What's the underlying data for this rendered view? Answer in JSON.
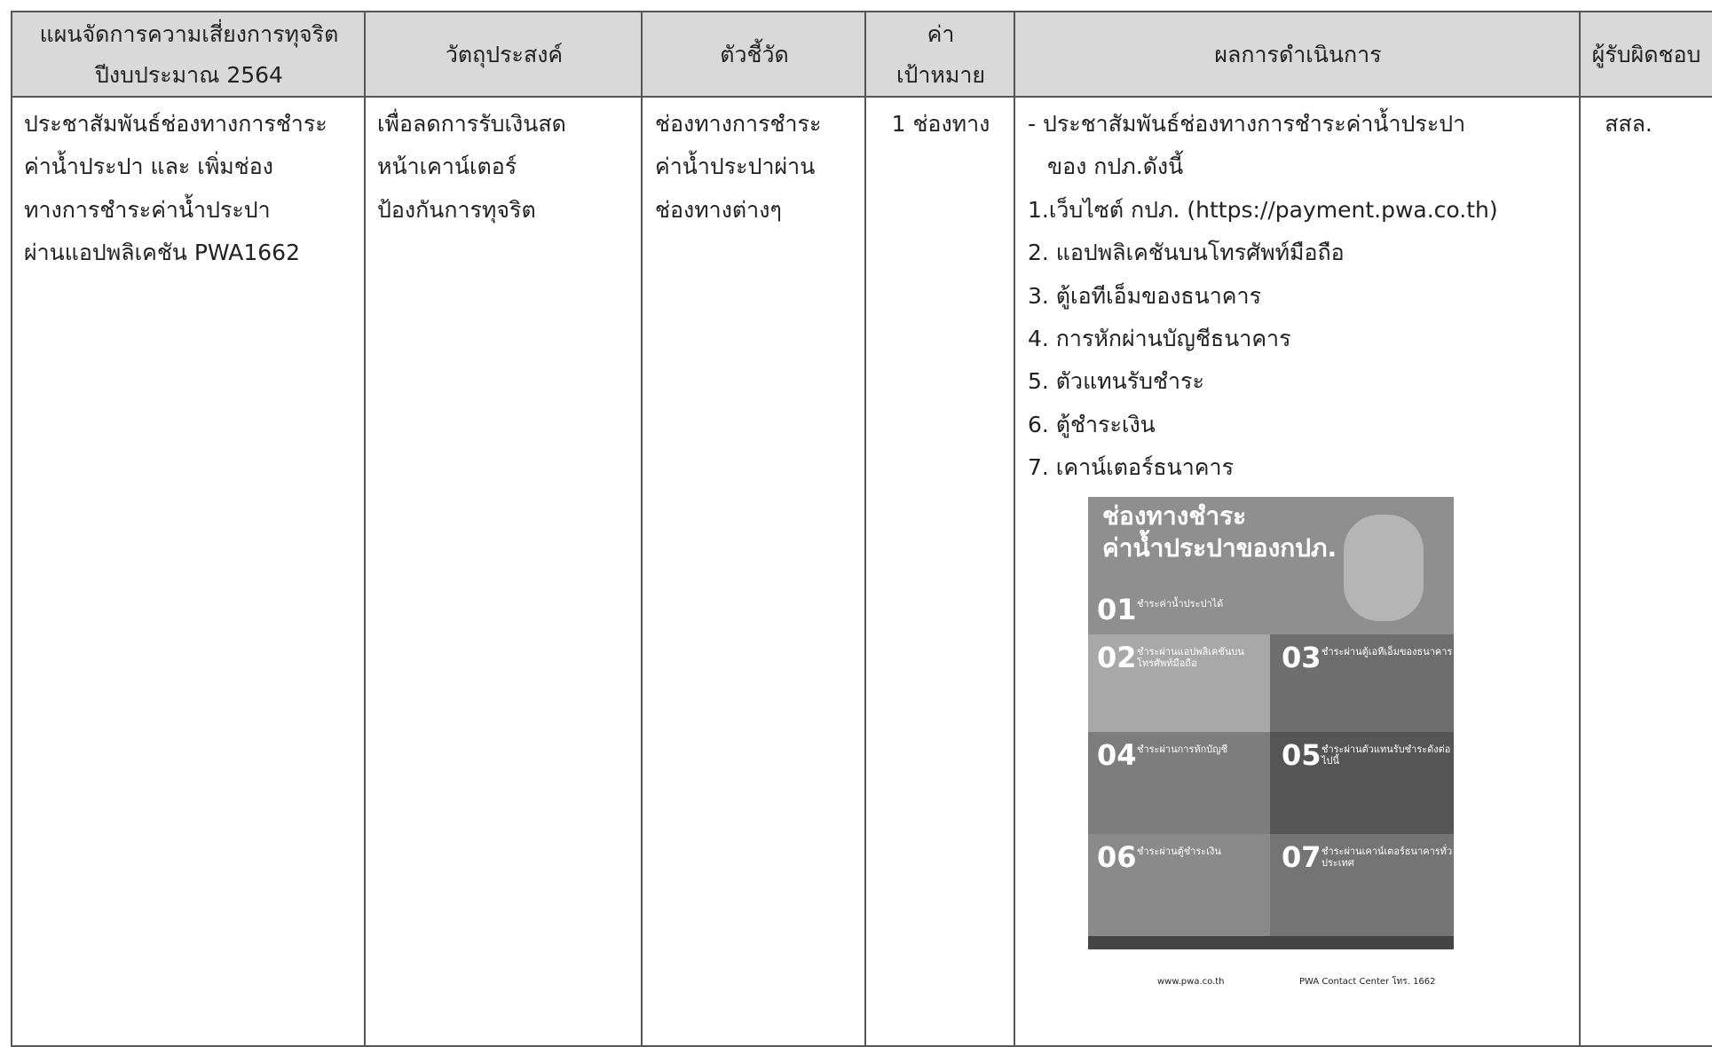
{
  "table": {
    "header": [
      [
        "แผนจัดการความเสี่ยงการทุจริต",
        "ปีงบประมาณ 2564"
      ],
      [
        "วัตถุประสงค์"
      ],
      [
        "ตัวชี้วัด"
      ],
      [
        "ค่า",
        "เป้าหมาย"
      ],
      [
        "ผลการดำเนินการ"
      ],
      [
        "ผู้รับผิดชอบ"
      ]
    ],
    "rows": [
      [
        [
          "ประชาสัมพันธ์ช่องทางการชำระ",
          "ค่าน้ำประปา และ เพิ่มช่อง",
          "ทางการชำระค่าน้ำประปา",
          "ผ่านแอปพลิเคชัน PWA1662"
        ],
        [
          "เพื่อลดการรับเงินสด",
          "หน้าเคาน์เตอร์",
          "ป้องกันการทุจริต"
        ],
        [
          "ช่องทางการชำระ",
          "ค่าน้ำประปาผ่าน",
          "ช่องทางต่างๆ"
        ],
        [
          "1 ช่องทาง"
        ],
        [
          "- ประชาสัมพันธ์ช่องทางการชำระค่าน้ำประปา",
          "ของ กปภ.ดังนี้",
          "1.เว็บไซต์ กปภ. (https://payment.pwa.co.th)",
          "2. แอปพลิเคชันบนโทรศัพท์มือถือ",
          "3. ตู้เอทีเอ็มของธนาคาร",
          "4. การหักผ่านบัญชีธนาคาร",
          "5. ตัวแทนรับชำระ",
          "6. ตู้ชำระเงิน",
          "7. เคาน์เตอร์ธนาคาร"
        ],
        [
          "สสล."
        ]
      ]
    ]
  },
  "poster": {
    "title": [
      "ช่องทางชำระ",
      "ค่าน้ำประปาของกปภ."
    ],
    "sections": [
      {
        "number": "01",
        "label": "ชำระค่าน้ำประปาได้"
      },
      {
        "number": "02",
        "label": "ชำระผ่านแอปพลิเคชันบนโทรศัพท์มือถือ"
      },
      {
        "number": "03",
        "label": "ชำระผ่านตู้เอทีเอ็มของธนาคาร"
      },
      {
        "number": "04",
        "label": "ชำระผ่านการหักบัญชี"
      },
      {
        "number": "05",
        "label": "ชำระผ่านตัวแทนรับชำระดังต่อไปนี้"
      },
      {
        "number": "06",
        "label": "ชำระผ่านตู้ชำระเงิน"
      },
      {
        "number": "07",
        "label": "ชำระผ่านเคาน์เตอร์ธนาคารทั่วประเทศ"
      }
    ],
    "footer": [
      "www.pwa.co.th",
      "PWA Contact Center โทร. 1662"
    ]
  }
}
